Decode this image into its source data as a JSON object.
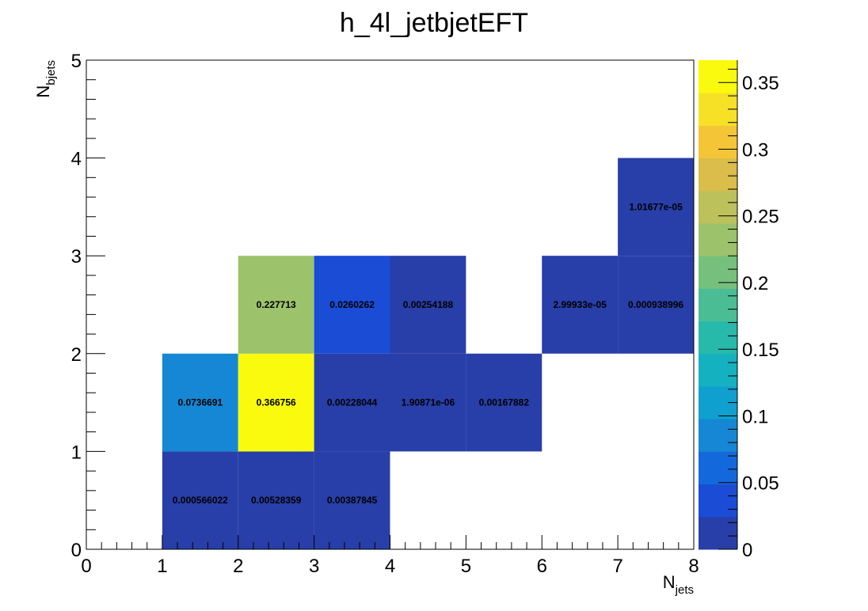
{
  "chart_data": {
    "type": "heatmap",
    "title": "h_4l_jetbjetEFT",
    "xlabel": {
      "main": "N",
      "sub": "jets"
    },
    "ylabel": {
      "main": "N",
      "sub": "bjets"
    },
    "xlim": [
      0,
      8
    ],
    "ylim": [
      0,
      5
    ],
    "x_ticks": [
      "0",
      "1",
      "2",
      "3",
      "4",
      "5",
      "6",
      "7",
      "8"
    ],
    "y_ticks": [
      "0",
      "1",
      "2",
      "3",
      "4",
      "5"
    ],
    "colorbar": {
      "range": [
        0,
        0.366756
      ],
      "ticks": [
        "0",
        "0.05",
        "0.1",
        "0.15",
        "0.2",
        "0.25",
        "0.3",
        "0.35"
      ],
      "tick_values": [
        0,
        0.05,
        0.1,
        0.15,
        0.2,
        0.25,
        0.3,
        0.35
      ],
      "palette": [
        "#283ea8",
        "#1a4cd6",
        "#1369dc",
        "#1587d4",
        "#0fa0cf",
        "#14b1c0",
        "#27b9aa",
        "#4bbd94",
        "#76c07d",
        "#9cc26b",
        "#bdc15b",
        "#dabd4a",
        "#f4c537",
        "#f7e127",
        "#f9fa0e"
      ]
    },
    "cells": [
      {
        "x": 1,
        "y": 0,
        "value": 0.000566022,
        "label": "0.000566022",
        "color": "#283ea8"
      },
      {
        "x": 2,
        "y": 0,
        "value": 0.00528359,
        "label": "0.00528359",
        "color": "#283ea8"
      },
      {
        "x": 3,
        "y": 0,
        "value": 0.00387845,
        "label": "0.00387845",
        "color": "#283ea8"
      },
      {
        "x": 1,
        "y": 1,
        "value": 0.0736691,
        "label": "0.0736691",
        "color": "#1587d4"
      },
      {
        "x": 2,
        "y": 1,
        "value": 0.366756,
        "label": "0.366756",
        "color": "#f9fa0e"
      },
      {
        "x": 3,
        "y": 1,
        "value": 0.00228044,
        "label": "0.00228044",
        "color": "#283ea8"
      },
      {
        "x": 4,
        "y": 1,
        "value": 1.90871e-06,
        "label": "1.90871e-06",
        "color": "#283ea8"
      },
      {
        "x": 5,
        "y": 1,
        "value": 0.00167882,
        "label": "0.00167882",
        "color": "#283ea8"
      },
      {
        "x": 2,
        "y": 2,
        "value": 0.227713,
        "label": "0.227713",
        "color": "#9cc26b"
      },
      {
        "x": 3,
        "y": 2,
        "value": 0.0260262,
        "label": "0.0260262",
        "color": "#1a4cd6"
      },
      {
        "x": 4,
        "y": 2,
        "value": 0.00254188,
        "label": "0.00254188",
        "color": "#283ea8"
      },
      {
        "x": 6,
        "y": 2,
        "value": 2.99933e-05,
        "label": "2.99933e-05",
        "color": "#283ea8"
      },
      {
        "x": 7,
        "y": 2,
        "value": 0.000938996,
        "label": "0.000938996",
        "color": "#283ea8"
      },
      {
        "x": 7,
        "y": 3,
        "value": 1.01677e-05,
        "label": "1.01677e-05",
        "color": "#283ea8"
      }
    ]
  }
}
